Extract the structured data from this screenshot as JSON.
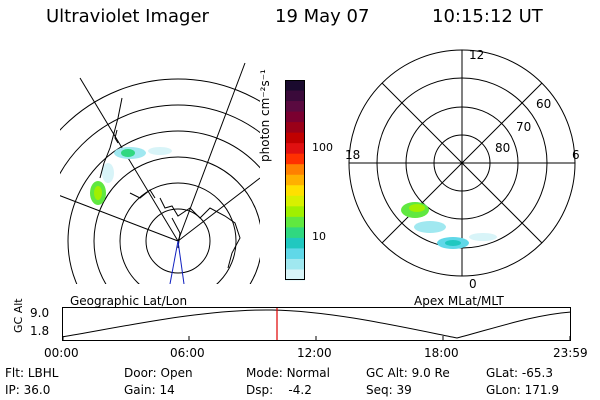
{
  "header": {
    "instrument": "Ultraviolet Imager",
    "date": "19 May 07",
    "time": "10:15:12 UT"
  },
  "colorbar": {
    "unit_label": "photon cm⁻²s⁻¹",
    "ticks": [
      "100",
      "10"
    ],
    "colors_top_to_bottom": [
      "#1a0a2e",
      "#3a0a3a",
      "#5a0a40",
      "#7a0030",
      "#9a0018",
      "#c00000",
      "#e01010",
      "#ff3000",
      "#ff8000",
      "#ffb000",
      "#ffe000",
      "#d8f000",
      "#a0f000",
      "#60e840",
      "#30d880",
      "#20c8c0",
      "#60d8e8",
      "#a0e8f0",
      "#d8f4f8"
    ]
  },
  "left_panel": {
    "caption": "Geographic Lat/Lon"
  },
  "right_panel": {
    "caption": "Apex MLat/MLT",
    "mlt_labels": {
      "top": "12",
      "left": "18",
      "right": "6",
      "bottom": "0"
    },
    "mlat_labels": [
      "60",
      "70",
      "80"
    ]
  },
  "altitude_plot": {
    "ylabel": "GC Alt",
    "ymax": "9.0",
    "ymin": "1.8",
    "time_ticks": [
      "00:00",
      "06:00",
      "12:00",
      "18:00",
      "23:59"
    ],
    "current_time_marker_color": "#e00000"
  },
  "info": {
    "filter_label": "Flt:",
    "filter_value": "LBHL",
    "ip_label": "IP:",
    "ip_value": "36.0",
    "door_label": "Door:",
    "door_value": "Open",
    "gain_label": "Gain:",
    "gain_value": "14",
    "mode_label": "Mode:",
    "mode_value": "Normal",
    "dsp_label": "Dsp:",
    "dsp_value": "-4.2",
    "gcalt_label": "GC Alt:",
    "gcalt_value": "9.0 Re",
    "seq_label": "Seq:",
    "seq_value": "39",
    "glat_label": "GLat:",
    "glat_value": "-65.3",
    "glon_label": "GLon:",
    "glon_value": "171.9"
  }
}
